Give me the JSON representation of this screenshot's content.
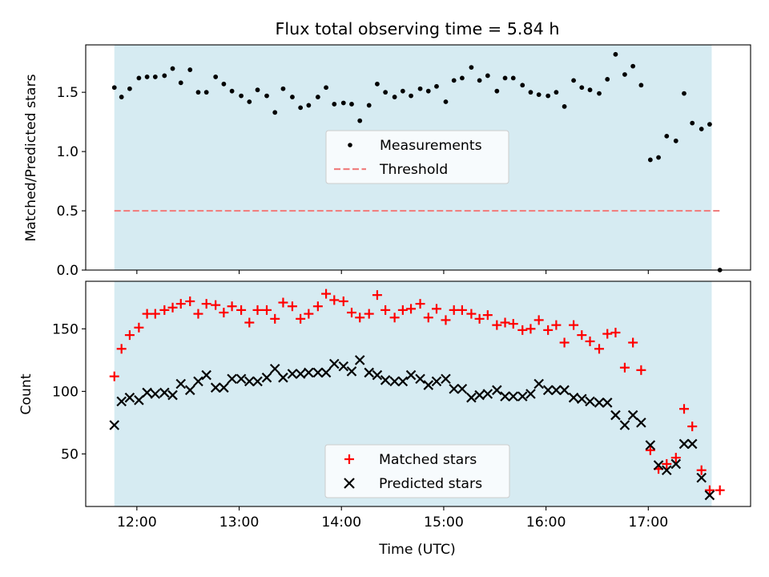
{
  "title": "Flux total observing time = 5.84 h",
  "colors": {
    "band": "#add8e6",
    "band_alpha": 0.5,
    "measure": "#000000",
    "threshold": "#f08080",
    "matched": "#ff0000",
    "predicted": "#000000"
  },
  "xaxis": {
    "label": "Time (UTC)",
    "ticks": [
      "12:00",
      "13:00",
      "14:00",
      "15:00",
      "16:00",
      "17:00"
    ],
    "range_hours": [
      11.5,
      18.0
    ]
  },
  "chart_data": [
    {
      "type": "scatter",
      "panel": "top",
      "ylabel": "Matched/Predicted stars",
      "ylim": [
        0.0,
        1.9
      ],
      "yticks": [
        "0.0",
        "0.5",
        "1.0",
        "1.5"
      ],
      "band_hours": [
        11.78,
        17.62
      ],
      "threshold": 0.5,
      "threshold_x_hours": [
        11.78,
        17.7
      ],
      "legend": {
        "placement": "center",
        "entries": [
          "Measurements",
          "Threshold"
        ]
      },
      "series": [
        {
          "name": "Measurements",
          "x_hours": [
            11.78,
            11.85,
            11.93,
            12.02,
            12.1,
            12.18,
            12.27,
            12.35,
            12.43,
            12.52,
            12.6,
            12.68,
            12.77,
            12.85,
            12.93,
            13.02,
            13.1,
            13.18,
            13.27,
            13.35,
            13.43,
            13.52,
            13.6,
            13.68,
            13.77,
            13.85,
            13.93,
            14.02,
            14.1,
            14.18,
            14.27,
            14.35,
            14.43,
            14.52,
            14.6,
            14.68,
            14.77,
            14.85,
            14.93,
            15.02,
            15.1,
            15.18,
            15.27,
            15.35,
            15.43,
            15.52,
            15.6,
            15.68,
            15.77,
            15.85,
            15.93,
            16.02,
            16.1,
            16.18,
            16.27,
            16.35,
            16.43,
            16.52,
            16.6,
            16.68,
            16.77,
            16.85,
            16.93,
            17.02,
            17.1,
            17.18,
            17.27,
            17.35,
            17.43,
            17.52,
            17.6,
            17.7
          ],
          "values": [
            1.54,
            1.46,
            1.53,
            1.62,
            1.63,
            1.63,
            1.64,
            1.7,
            1.58,
            1.69,
            1.5,
            1.5,
            1.63,
            1.57,
            1.51,
            1.47,
            1.42,
            1.52,
            1.47,
            1.33,
            1.53,
            1.46,
            1.37,
            1.39,
            1.46,
            1.54,
            1.4,
            1.41,
            1.4,
            1.26,
            1.39,
            1.57,
            1.5,
            1.46,
            1.51,
            1.47,
            1.53,
            1.51,
            1.55,
            1.42,
            1.6,
            1.62,
            1.71,
            1.6,
            1.64,
            1.51,
            1.62,
            1.62,
            1.56,
            1.5,
            1.48,
            1.47,
            1.5,
            1.38,
            1.6,
            1.54,
            1.52,
            1.49,
            1.61,
            1.82,
            1.65,
            1.72,
            1.56,
            0.93,
            0.95,
            1.13,
            1.09,
            1.49,
            1.24,
            1.19,
            1.23,
            0.0
          ]
        },
        {
          "name": "Threshold",
          "values": [
            0.5
          ]
        }
      ]
    },
    {
      "type": "scatter",
      "panel": "bottom",
      "ylabel": "Count",
      "ylim": [
        8,
        188
      ],
      "yticks": [
        "50",
        "100",
        "150"
      ],
      "band_hours": [
        11.78,
        17.62
      ],
      "legend": {
        "placement": "lower center",
        "entries": [
          "Matched stars",
          "Predicted stars"
        ]
      },
      "series": [
        {
          "name": "Matched stars",
          "x_hours": [
            11.78,
            11.85,
            11.93,
            12.02,
            12.1,
            12.18,
            12.27,
            12.35,
            12.43,
            12.52,
            12.6,
            12.68,
            12.77,
            12.85,
            12.93,
            13.02,
            13.1,
            13.18,
            13.27,
            13.35,
            13.43,
            13.52,
            13.6,
            13.68,
            13.77,
            13.85,
            13.93,
            14.02,
            14.1,
            14.18,
            14.27,
            14.35,
            14.43,
            14.52,
            14.6,
            14.68,
            14.77,
            14.85,
            14.93,
            15.02,
            15.1,
            15.18,
            15.27,
            15.35,
            15.43,
            15.52,
            15.6,
            15.68,
            15.77,
            15.85,
            15.93,
            16.02,
            16.1,
            16.18,
            16.27,
            16.35,
            16.43,
            16.52,
            16.6,
            16.68,
            16.77,
            16.85,
            16.93,
            17.02,
            17.1,
            17.18,
            17.27,
            17.35,
            17.43,
            17.52,
            17.6,
            17.7
          ],
          "values": [
            112,
            134,
            145,
            151,
            162,
            162,
            165,
            167,
            170,
            172,
            162,
            170,
            169,
            163,
            168,
            165,
            155,
            165,
            165,
            158,
            171,
            168,
            158,
            162,
            168,
            178,
            173,
            172,
            163,
            159,
            162,
            177,
            165,
            159,
            165,
            166,
            170,
            159,
            166,
            157,
            165,
            165,
            162,
            158,
            161,
            153,
            155,
            154,
            149,
            150,
            157,
            149,
            153,
            139,
            153,
            145,
            140,
            134,
            146,
            147,
            119,
            139,
            117,
            53,
            38,
            42,
            47,
            86,
            72,
            37,
            21,
            21
          ]
        },
        {
          "name": "Predicted stars",
          "x_hours": [
            11.78,
            11.85,
            11.93,
            12.02,
            12.1,
            12.18,
            12.27,
            12.35,
            12.43,
            12.52,
            12.6,
            12.68,
            12.77,
            12.85,
            12.93,
            13.02,
            13.1,
            13.18,
            13.27,
            13.35,
            13.43,
            13.52,
            13.6,
            13.68,
            13.77,
            13.85,
            13.93,
            14.02,
            14.1,
            14.18,
            14.27,
            14.35,
            14.43,
            14.52,
            14.6,
            14.68,
            14.77,
            14.85,
            14.93,
            15.02,
            15.1,
            15.18,
            15.27,
            15.35,
            15.43,
            15.52,
            15.6,
            15.68,
            15.77,
            15.85,
            15.93,
            16.02,
            16.1,
            16.18,
            16.27,
            16.35,
            16.43,
            16.52,
            16.6,
            16.68,
            16.77,
            16.85,
            16.93,
            17.02,
            17.1,
            17.18,
            17.27,
            17.35,
            17.43,
            17.52,
            17.6
          ],
          "values": [
            73,
            92,
            95,
            93,
            99,
            98,
            99,
            97,
            106,
            101,
            108,
            113,
            103,
            103,
            110,
            110,
            108,
            108,
            111,
            118,
            111,
            114,
            114,
            115,
            115,
            115,
            122,
            120,
            116,
            125,
            115,
            113,
            109,
            108,
            108,
            113,
            110,
            105,
            108,
            110,
            102,
            102,
            95,
            97,
            98,
            101,
            96,
            96,
            96,
            98,
            106,
            101,
            101,
            101,
            95,
            94,
            92,
            91,
            91,
            81,
            73,
            81,
            75,
            57,
            41,
            37,
            42,
            58,
            58,
            31,
            17
          ]
        }
      ]
    }
  ]
}
